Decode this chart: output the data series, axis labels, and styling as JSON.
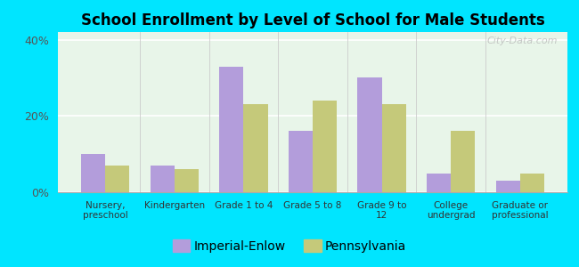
{
  "title": "School Enrollment by Level of School for Male Students",
  "categories": [
    "Nursery,\npreschool",
    "Kindergarten",
    "Grade 1 to 4",
    "Grade 5 to 8",
    "Grade 9 to\n12",
    "College\nundergrad",
    "Graduate or\nprofessional"
  ],
  "imperial_enlow": [
    10,
    7,
    33,
    16,
    30,
    5,
    3
  ],
  "pennsylvania": [
    7,
    6,
    23,
    24,
    23,
    16,
    5
  ],
  "bar_color_imperial": "#b39ddb",
  "bar_color_pennsylvania": "#c5c97a",
  "ylim": [
    0,
    42
  ],
  "yticks": [
    0,
    20,
    40
  ],
  "ytick_labels": [
    "0%",
    "20%",
    "40%"
  ],
  "background_color": "#00e5ff",
  "plot_bg_color": "#e8f5e9",
  "legend_label_1": "Imperial-Enlow",
  "legend_label_2": "Pennsylvania",
  "bar_width": 0.35,
  "watermark": "City-Data.com"
}
